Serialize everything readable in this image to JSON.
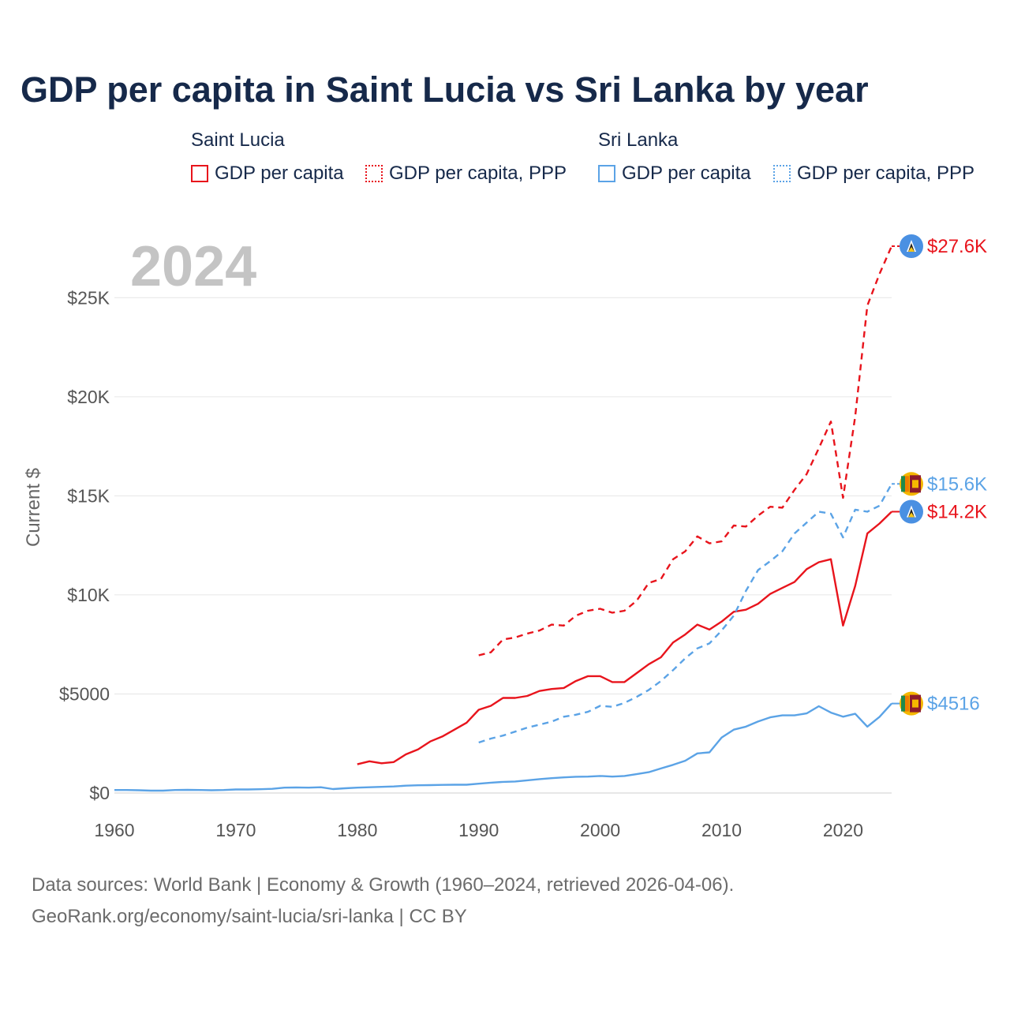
{
  "title": "GDP per capita in Saint Lucia vs Sri Lanka by year",
  "legend": {
    "groups": [
      {
        "name": "Saint Lucia",
        "color": "#e8141c",
        "items": [
          {
            "label": "GDP per capita",
            "style": "solid"
          },
          {
            "label": "GDP per capita, PPP",
            "style": "dotted"
          }
        ]
      },
      {
        "name": "Sri Lanka",
        "color": "#5ba3e6",
        "items": [
          {
            "label": "GDP per capita",
            "style": "solid"
          },
          {
            "label": "GDP per capita, PPP",
            "style": "dotted"
          }
        ]
      }
    ]
  },
  "footer": {
    "line1": "Data sources: World Bank | Economy & Growth (1960–2024, retrieved 2026-04-06).",
    "line2": "GeoRank.org/economy/saint-lucia/sri-lanka | CC BY"
  },
  "chart_data": {
    "type": "line",
    "title": "GDP per capita in Saint Lucia vs Sri Lanka by year",
    "year_label": "2024",
    "ylabel": "Current $",
    "xlabel": "",
    "xlim": [
      1960,
      2024
    ],
    "ylim": [
      0,
      27600
    ],
    "x_ticks": [
      1960,
      1970,
      1980,
      1990,
      2000,
      2010,
      2020
    ],
    "x_tick_labels": [
      "1960",
      "1970",
      "1980",
      "1990",
      "2000",
      "2010",
      "2020"
    ],
    "y_ticks": [
      0,
      5000,
      10000,
      15000,
      20000,
      25000
    ],
    "y_tick_labels": [
      "$0",
      "$5000",
      "$10K",
      "$15K",
      "$20K",
      "$25K"
    ],
    "grid": true,
    "series": [
      {
        "name": "Saint Lucia – GDP per capita, PPP",
        "color": "#e8141c",
        "dash": "dashed",
        "end_label": "$27.6K",
        "flag": "saint-lucia",
        "x": [
          1990,
          1991,
          1992,
          1993,
          1994,
          1995,
          1996,
          1997,
          1998,
          1999,
          2000,
          2001,
          2002,
          2003,
          2004,
          2005,
          2006,
          2007,
          2008,
          2009,
          2010,
          2011,
          2012,
          2013,
          2014,
          2015,
          2016,
          2017,
          2018,
          2019,
          2020,
          2021,
          2022,
          2023,
          2024
        ],
        "y": [
          6950,
          7100,
          7750,
          7850,
          8050,
          8200,
          8500,
          8450,
          8950,
          9200,
          9300,
          9100,
          9200,
          9700,
          10600,
          10800,
          11800,
          12200,
          12950,
          12600,
          12700,
          13500,
          13450,
          14000,
          14450,
          14400,
          15300,
          16100,
          17400,
          18750,
          14900,
          19000,
          24600,
          26200,
          27600
        ]
      },
      {
        "name": "Saint Lucia – GDP per capita",
        "color": "#e8141c",
        "dash": "solid",
        "end_label": "$14.2K",
        "flag": "saint-lucia",
        "x": [
          1980,
          1981,
          1982,
          1983,
          1984,
          1985,
          1986,
          1987,
          1988,
          1989,
          1990,
          1991,
          1992,
          1993,
          1994,
          1995,
          1996,
          1997,
          1998,
          1999,
          2000,
          2001,
          2002,
          2003,
          2004,
          2005,
          2006,
          2007,
          2008,
          2009,
          2010,
          2011,
          2012,
          2013,
          2014,
          2015,
          2016,
          2017,
          2018,
          2019,
          2020,
          2021,
          2022,
          2023,
          2024
        ],
        "y": [
          1450,
          1600,
          1500,
          1560,
          1950,
          2200,
          2600,
          2850,
          3200,
          3550,
          4200,
          4400,
          4800,
          4800,
          4900,
          5150,
          5250,
          5300,
          5650,
          5900,
          5900,
          5600,
          5600,
          6050,
          6500,
          6850,
          7600,
          8000,
          8500,
          8250,
          8650,
          9150,
          9250,
          9550,
          10050,
          10350,
          10650,
          11300,
          11650,
          11800,
          8450,
          10450,
          13100,
          13600,
          14200
        ]
      },
      {
        "name": "Sri Lanka – GDP per capita, PPP",
        "color": "#5ba3e6",
        "dash": "dashed",
        "end_label": "$15.6K",
        "flag": "sri-lanka",
        "x": [
          1990,
          1991,
          1992,
          1993,
          1994,
          1995,
          1996,
          1997,
          1998,
          1999,
          2000,
          2001,
          2002,
          2003,
          2004,
          2005,
          2006,
          2007,
          2008,
          2009,
          2010,
          2011,
          2012,
          2013,
          2014,
          2015,
          2016,
          2017,
          2018,
          2019,
          2020,
          2021,
          2022,
          2023,
          2024
        ],
        "y": [
          2550,
          2750,
          2900,
          3100,
          3300,
          3450,
          3600,
          3850,
          3950,
          4100,
          4400,
          4350,
          4550,
          4850,
          5200,
          5650,
          6200,
          6800,
          7300,
          7550,
          8200,
          8950,
          10200,
          11250,
          11700,
          12200,
          13100,
          13650,
          14200,
          14100,
          12900,
          14300,
          14200,
          14500,
          15600
        ]
      },
      {
        "name": "Sri Lanka – GDP per capita",
        "color": "#5ba3e6",
        "dash": "solid",
        "end_label": "$4516",
        "flag": "sri-lanka",
        "x": [
          1960,
          1961,
          1962,
          1963,
          1964,
          1965,
          1966,
          1967,
          1968,
          1969,
          1970,
          1971,
          1972,
          1973,
          1974,
          1975,
          1976,
          1977,
          1978,
          1979,
          1980,
          1981,
          1982,
          1983,
          1984,
          1985,
          1986,
          1987,
          1988,
          1989,
          1990,
          1991,
          1992,
          1993,
          1994,
          1995,
          1996,
          1997,
          1998,
          1999,
          2000,
          2001,
          2002,
          2003,
          2004,
          2005,
          2006,
          2007,
          2008,
          2009,
          2010,
          2011,
          2012,
          2013,
          2014,
          2015,
          2016,
          2017,
          2018,
          2019,
          2020,
          2021,
          2022,
          2023,
          2024
        ],
        "y": [
          150,
          150,
          140,
          120,
          120,
          150,
          160,
          150,
          140,
          150,
          180,
          180,
          190,
          210,
          270,
          280,
          270,
          290,
          200,
          240,
          270,
          290,
          310,
          330,
          370,
          390,
          400,
          410,
          420,
          420,
          470,
          520,
          560,
          580,
          640,
          700,
          750,
          790,
          820,
          830,
          860,
          830,
          860,
          950,
          1050,
          1240,
          1420,
          1630,
          2000,
          2050,
          2800,
          3200,
          3350,
          3610,
          3820,
          3920,
          3920,
          4020,
          4380,
          4060,
          3850,
          4000,
          3350,
          3840,
          4516
        ]
      }
    ]
  }
}
